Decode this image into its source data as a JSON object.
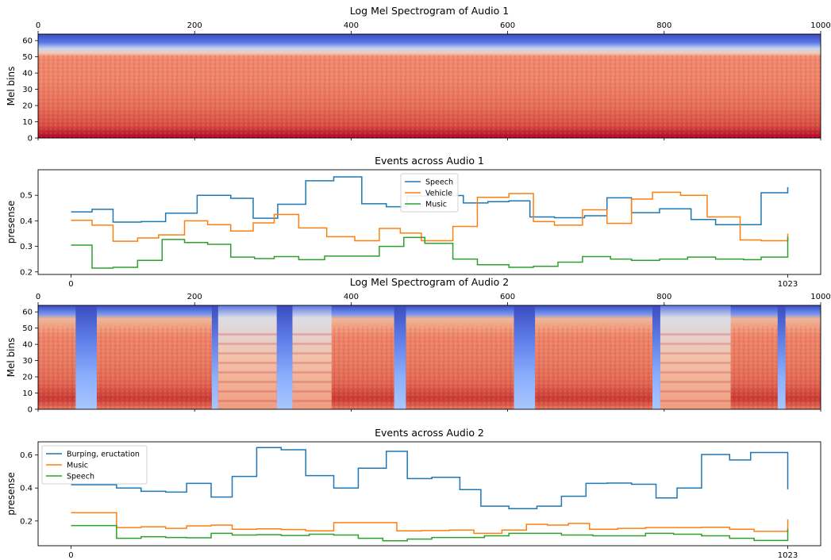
{
  "chart_data": [
    {
      "type": "heatmap",
      "title": "Log Mel Spectrogram of Audio 1",
      "ylabel": "Mel bins",
      "xlim": [
        0,
        1000
      ],
      "ylim": [
        0,
        64
      ],
      "xticks": [
        0,
        200,
        400,
        600,
        800,
        1000
      ],
      "yticks": [
        0,
        10,
        20,
        30,
        40,
        50,
        60
      ],
      "colormap": "coolwarm",
      "x_axis_position": "top",
      "description_regions": {
        "high_bins_cold": [
          55,
          64
        ],
        "band_light": [
          50,
          55
        ],
        "body_warm": [
          0,
          50
        ]
      },
      "silence_intervals": []
    },
    {
      "type": "line",
      "title": "Events across Audio 1",
      "xlabel": "",
      "ylabel": "presense",
      "xlim": [
        -47,
        1070
      ],
      "ylim": [
        0.19,
        0.6
      ],
      "xticks": [
        0,
        1023
      ],
      "yticks": [
        0.2,
        0.3,
        0.4,
        0.5
      ],
      "legend_position": "upper center",
      "series": [
        {
          "name": "Speech",
          "color": "#1f77b4",
          "x": [
            0,
            30,
            60,
            100,
            135,
            180,
            228,
            260,
            295,
            335,
            375,
            415,
            450,
            480,
            510,
            560,
            595,
            625,
            655,
            690,
            733,
            765,
            800,
            840,
            885,
            920,
            985,
            1023
          ],
          "y": [
            0.435,
            0.445,
            0.395,
            0.397,
            0.43,
            0.5,
            0.488,
            0.41,
            0.465,
            0.557,
            0.572,
            0.467,
            0.455,
            0.497,
            0.499,
            0.47,
            0.475,
            0.478,
            0.415,
            0.412,
            0.42,
            0.49,
            0.432,
            0.447,
            0.405,
            0.385,
            0.51,
            0.532
          ]
        },
        {
          "name": "Vehicle",
          "color": "#ff7f0e",
          "x": [
            0,
            30,
            60,
            95,
            125,
            162,
            195,
            228,
            260,
            290,
            325,
            365,
            405,
            440,
            470,
            500,
            545,
            580,
            625,
            660,
            690,
            730,
            765,
            800,
            830,
            870,
            908,
            955,
            985,
            1023
          ],
          "y": [
            0.402,
            0.383,
            0.32,
            0.333,
            0.345,
            0.4,
            0.385,
            0.36,
            0.392,
            0.425,
            0.372,
            0.338,
            0.322,
            0.37,
            0.352,
            0.322,
            0.378,
            0.492,
            0.507,
            0.397,
            0.383,
            0.443,
            0.39,
            0.485,
            0.512,
            0.5,
            0.415,
            0.325,
            0.322,
            0.35
          ]
        },
        {
          "name": "Music",
          "color": "#2ca02c",
          "x": [
            0,
            30,
            60,
            95,
            130,
            162,
            195,
            228,
            262,
            290,
            325,
            362,
            400,
            440,
            475,
            505,
            545,
            580,
            625,
            660,
            695,
            730,
            770,
            800,
            840,
            880,
            920,
            960,
            985,
            1023
          ],
          "y": [
            0.305,
            0.215,
            0.218,
            0.245,
            0.327,
            0.315,
            0.308,
            0.258,
            0.252,
            0.26,
            0.248,
            0.262,
            0.262,
            0.3,
            0.335,
            0.312,
            0.25,
            0.228,
            0.218,
            0.222,
            0.238,
            0.26,
            0.25,
            0.245,
            0.25,
            0.258,
            0.25,
            0.248,
            0.258,
            0.337
          ]
        }
      ]
    },
    {
      "type": "heatmap",
      "title": "Log Mel Spectrogram of Audio 2",
      "ylabel": "Mel bins",
      "xlim": [
        0,
        1000
      ],
      "ylim": [
        0,
        64
      ],
      "xticks": [
        0,
        200,
        400,
        600,
        800,
        1000
      ],
      "yticks": [
        0,
        10,
        20,
        30,
        40,
        50,
        60
      ],
      "colormap": "coolwarm",
      "x_axis_position": "top",
      "silence_intervals": [
        [
          48,
          75
        ],
        [
          222,
          230
        ],
        [
          305,
          325
        ],
        [
          455,
          470
        ],
        [
          608,
          635
        ],
        [
          785,
          795
        ],
        [
          945,
          955
        ]
      ],
      "lighter_intervals": [
        [
          230,
          305
        ],
        [
          325,
          375
        ],
        [
          795,
          885
        ]
      ]
    },
    {
      "type": "line",
      "title": "Events across Audio 2",
      "xlabel": "",
      "ylabel": "presense",
      "xlim": [
        -47,
        1070
      ],
      "ylim": [
        0.05,
        0.68
      ],
      "xticks": [
        0,
        1023
      ],
      "yticks": [
        0.2,
        0.4,
        0.6
      ],
      "legend_position": "upper left",
      "series": [
        {
          "name": "Burping, eructation",
          "color": "#1f77b4",
          "x": [
            0,
            65,
            100,
            135,
            165,
            200,
            230,
            265,
            300,
            335,
            375,
            410,
            450,
            480,
            515,
            555,
            585,
            625,
            665,
            700,
            735,
            765,
            800,
            835,
            865,
            900,
            940,
            970,
            1023
          ],
          "y": [
            0.42,
            0.4,
            0.38,
            0.375,
            0.428,
            0.345,
            0.47,
            0.645,
            0.632,
            0.475,
            0.4,
            0.52,
            0.622,
            0.457,
            0.465,
            0.39,
            0.29,
            0.275,
            0.29,
            0.35,
            0.428,
            0.43,
            0.423,
            0.34,
            0.4,
            0.603,
            0.57,
            0.615,
            0.392
          ]
        },
        {
          "name": "Music",
          "color": "#ff7f0e",
          "x": [
            0,
            65,
            100,
            135,
            165,
            200,
            230,
            265,
            300,
            335,
            375,
            425,
            465,
            500,
            540,
            575,
            615,
            650,
            680,
            710,
            740,
            780,
            820,
            865,
            900,
            940,
            975,
            1023
          ],
          "y": [
            0.25,
            0.16,
            0.165,
            0.155,
            0.17,
            0.175,
            0.15,
            0.152,
            0.148,
            0.14,
            0.19,
            0.19,
            0.14,
            0.142,
            0.145,
            0.125,
            0.145,
            0.18,
            0.175,
            0.185,
            0.15,
            0.155,
            0.16,
            0.16,
            0.162,
            0.15,
            0.137,
            0.21
          ]
        },
        {
          "name": "Speech",
          "color": "#2ca02c",
          "x": [
            0,
            65,
            100,
            135,
            165,
            200,
            230,
            265,
            300,
            340,
            375,
            410,
            445,
            480,
            515,
            555,
            590,
            625,
            665,
            700,
            745,
            780,
            820,
            860,
            900,
            940,
            975,
            1023
          ],
          "y": [
            0.172,
            0.095,
            0.105,
            0.1,
            0.098,
            0.125,
            0.115,
            0.117,
            0.112,
            0.12,
            0.115,
            0.095,
            0.08,
            0.09,
            0.1,
            0.1,
            0.11,
            0.125,
            0.125,
            0.115,
            0.11,
            0.11,
            0.125,
            0.12,
            0.11,
            0.095,
            0.082,
            0.152
          ]
        }
      ]
    }
  ]
}
